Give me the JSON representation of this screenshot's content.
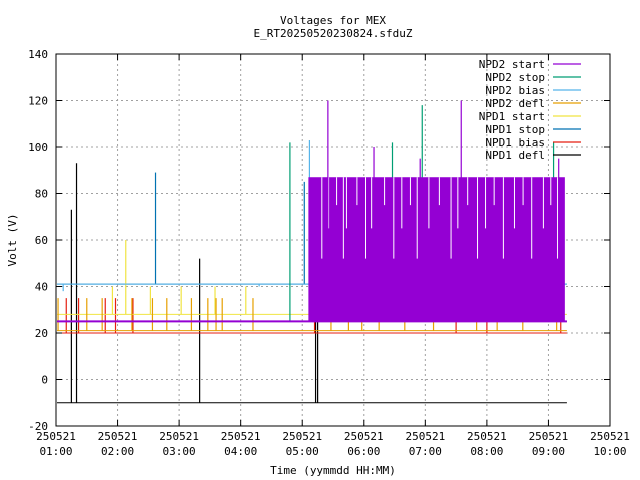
{
  "chart_data": {
    "type": "line",
    "title": "Voltages for MEX",
    "subtitle": "E_RT20250520230824.sfduZ",
    "xlabel": "Time (yymmdd HH:MM)",
    "ylabel": "Volt (V)",
    "xlim": [
      "250521 01:00",
      "250521 10:00"
    ],
    "ylim": [
      -20,
      140
    ],
    "grid": true,
    "legend_position": "top-right",
    "x_ticks": [
      {
        "date": "250521",
        "time": "01:00"
      },
      {
        "date": "250521",
        "time": "02:00"
      },
      {
        "date": "250521",
        "time": "03:00"
      },
      {
        "date": "250521",
        "time": "04:00"
      },
      {
        "date": "250521",
        "time": "05:00"
      },
      {
        "date": "250521",
        "time": "06:00"
      },
      {
        "date": "250521",
        "time": "07:00"
      },
      {
        "date": "250521",
        "time": "08:00"
      },
      {
        "date": "250521",
        "time": "09:00"
      },
      {
        "date": "250521",
        "time": "10:00"
      }
    ],
    "y_ticks": [
      "-20",
      "0",
      "20",
      "40",
      "60",
      "80",
      "100",
      "120",
      "140"
    ],
    "series": [
      {
        "name": "NPD2 start",
        "color": "#9400d3",
        "baseline": 25,
        "spikes": [
          [
            "05:25",
            120
          ],
          [
            "06:10",
            100
          ],
          [
            "06:55",
            95
          ],
          [
            "07:35",
            120
          ],
          [
            "09:10",
            95
          ]
        ],
        "band": {
          "from": "05:06",
          "to": "09:16",
          "high": 87,
          "low": 25
        }
      },
      {
        "name": "NPD2 stop",
        "color": "#009e73",
        "baseline": 25,
        "spikes": [
          [
            "04:48",
            102
          ],
          [
            "06:28",
            102
          ],
          [
            "06:57",
            118
          ],
          [
            "09:05",
            102
          ]
        ]
      },
      {
        "name": "NPD2 bias",
        "color": "#56b4e9",
        "baseline": 41,
        "spikes": [
          [
            "01:07",
            38
          ],
          [
            "04:18",
            40
          ],
          [
            "05:07",
            103
          ],
          [
            "06:18",
            56
          ]
        ]
      },
      {
        "name": "NPD2 defl",
        "color": "#e69f00",
        "baseline": 21,
        "spikes": [
          [
            "01:02",
            35
          ],
          [
            "01:30",
            35
          ],
          [
            "01:45",
            35
          ],
          [
            "02:14",
            35
          ],
          [
            "02:34",
            35
          ],
          [
            "02:48",
            35
          ],
          [
            "03:12",
            35
          ],
          [
            "03:28",
            35
          ],
          [
            "03:36",
            35
          ],
          [
            "03:42",
            35
          ],
          [
            "04:12",
            35
          ],
          [
            "05:28",
            35
          ],
          [
            "05:45",
            35
          ],
          [
            "05:58",
            35
          ],
          [
            "06:15",
            35
          ],
          [
            "06:40",
            35
          ],
          [
            "07:08",
            35
          ],
          [
            "07:50",
            35
          ],
          [
            "08:10",
            35
          ],
          [
            "08:35",
            35
          ],
          [
            "09:08",
            35
          ]
        ]
      },
      {
        "name": "NPD1 start",
        "color": "#f0e442",
        "baseline": 28,
        "spikes": [
          [
            "01:55",
            40
          ],
          [
            "02:08",
            60
          ],
          [
            "02:32",
            40
          ],
          [
            "03:02",
            40
          ],
          [
            "03:35",
            40
          ],
          [
            "04:05",
            40
          ]
        ]
      },
      {
        "name": "NPD1 stop",
        "color": "#0072b2",
        "baseline": 41,
        "spikes": [
          [
            "02:37",
            89
          ],
          [
            "05:02",
            85
          ]
        ]
      },
      {
        "name": "NPD1 bias",
        "color": "#e51e10",
        "baseline": 20,
        "spikes": [
          [
            "01:10",
            35
          ],
          [
            "01:22",
            35
          ],
          [
            "01:48",
            35
          ],
          [
            "01:58",
            35
          ],
          [
            "02:15",
            35
          ],
          [
            "05:12",
            50
          ],
          [
            "07:30",
            35
          ],
          [
            "08:00",
            35
          ],
          [
            "09:12",
            35
          ]
        ]
      },
      {
        "name": "NPD1 defl",
        "color": "#000000",
        "baseline": -10,
        "spikes": [
          [
            "01:15",
            73
          ],
          [
            "01:20",
            93
          ],
          [
            "03:20",
            52
          ],
          [
            "05:13",
            57
          ],
          [
            "05:15",
            60
          ]
        ]
      }
    ]
  }
}
